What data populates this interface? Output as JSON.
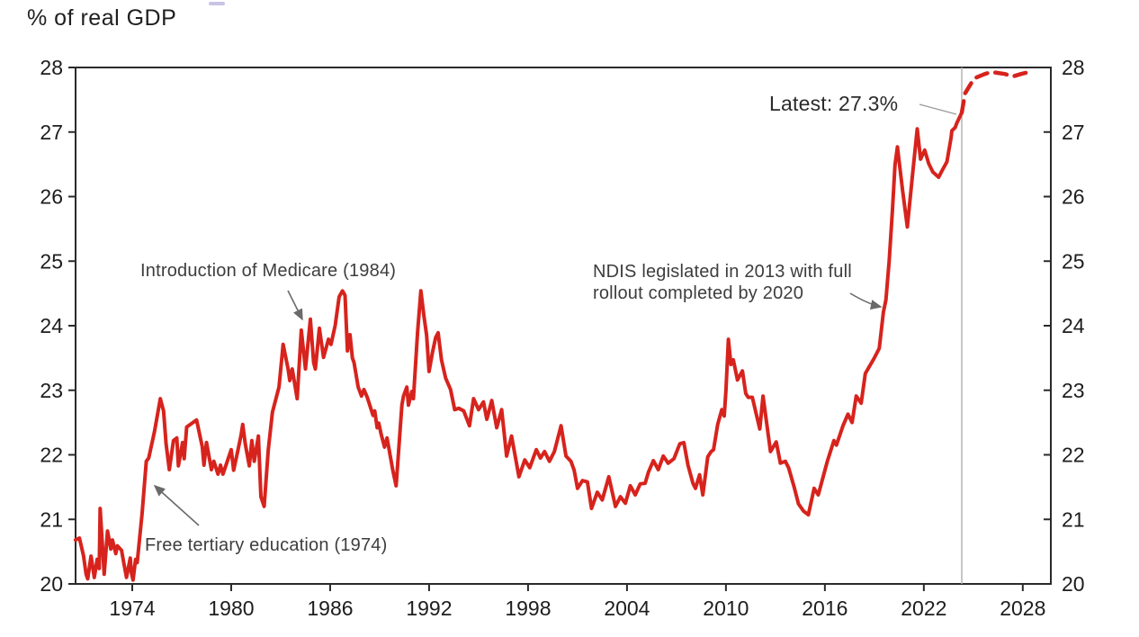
{
  "title": "% of real GDP",
  "chart_data": {
    "type": "line",
    "title": "% of real GDP",
    "ylabel": "% of real GDP",
    "grid": false,
    "legend_position": "none",
    "line_color": "#d7231d",
    "marker_line_color": "#b3b3b3",
    "axis_color": "#2a2a2a",
    "x_ticks": [
      1974,
      1980,
      1986,
      1992,
      1998,
      2004,
      2010,
      2016,
      2022,
      2028
    ],
    "y_ticks": [
      20,
      21,
      22,
      23,
      24,
      25,
      26,
      27,
      28
    ],
    "x_range": [
      1970.5,
      2029.6
    ],
    "y_range": [
      20,
      28
    ],
    "vertical_marker_x": 2024.3,
    "series": [
      {
        "name": "Actual",
        "style": "solid",
        "points": [
          [
            1970.56,
            20.68
          ],
          [
            1970.8,
            20.71
          ],
          [
            1971.05,
            20.43
          ],
          [
            1971.2,
            20.15
          ],
          [
            1971.3,
            20.08
          ],
          [
            1971.5,
            20.43
          ],
          [
            1971.7,
            20.1
          ],
          [
            1971.87,
            20.38
          ],
          [
            1972.0,
            20.24
          ],
          [
            1972.05,
            21.17
          ],
          [
            1972.25,
            20.36
          ],
          [
            1972.3,
            20.15
          ],
          [
            1972.5,
            20.82
          ],
          [
            1972.7,
            20.54
          ],
          [
            1972.8,
            20.68
          ],
          [
            1973.0,
            20.47
          ],
          [
            1973.1,
            20.59
          ],
          [
            1973.35,
            20.52
          ],
          [
            1973.5,
            20.31
          ],
          [
            1973.65,
            20.1
          ],
          [
            1973.88,
            20.4
          ],
          [
            1973.95,
            20.17
          ],
          [
            1974.05,
            20.06
          ],
          [
            1974.2,
            20.38
          ],
          [
            1974.3,
            20.33
          ],
          [
            1974.6,
            21.1
          ],
          [
            1974.85,
            21.9
          ],
          [
            1975.0,
            21.95
          ],
          [
            1975.35,
            22.36
          ],
          [
            1975.7,
            22.87
          ],
          [
            1975.9,
            22.68
          ],
          [
            1976.05,
            22.17
          ],
          [
            1976.25,
            21.77
          ],
          [
            1976.5,
            22.22
          ],
          [
            1976.7,
            22.26
          ],
          [
            1976.8,
            21.83
          ],
          [
            1977.05,
            22.19
          ],
          [
            1977.15,
            21.94
          ],
          [
            1977.3,
            22.43
          ],
          [
            1977.9,
            22.54
          ],
          [
            1978.25,
            22.12
          ],
          [
            1978.35,
            21.84
          ],
          [
            1978.5,
            22.19
          ],
          [
            1978.8,
            21.77
          ],
          [
            1978.95,
            21.9
          ],
          [
            1979.2,
            21.7
          ],
          [
            1979.35,
            21.84
          ],
          [
            1979.5,
            21.7
          ],
          [
            1980.0,
            22.08
          ],
          [
            1980.15,
            21.76
          ],
          [
            1980.45,
            22.12
          ],
          [
            1980.6,
            22.31
          ],
          [
            1980.7,
            22.47
          ],
          [
            1980.85,
            22.17
          ],
          [
            1981.1,
            21.83
          ],
          [
            1981.25,
            22.22
          ],
          [
            1981.4,
            21.9
          ],
          [
            1981.65,
            22.29
          ],
          [
            1981.8,
            21.35
          ],
          [
            1982.0,
            21.2
          ],
          [
            1982.25,
            22.08
          ],
          [
            1982.5,
            22.66
          ],
          [
            1982.9,
            23.05
          ],
          [
            1983.15,
            23.71
          ],
          [
            1983.45,
            23.33
          ],
          [
            1983.55,
            23.15
          ],
          [
            1983.7,
            23.33
          ],
          [
            1984.0,
            22.87
          ],
          [
            1984.25,
            23.93
          ],
          [
            1984.5,
            23.33
          ],
          [
            1984.8,
            24.1
          ],
          [
            1985.0,
            23.43
          ],
          [
            1985.1,
            23.33
          ],
          [
            1985.35,
            23.96
          ],
          [
            1985.6,
            23.51
          ],
          [
            1985.9,
            23.79
          ],
          [
            1986.05,
            23.71
          ],
          [
            1986.3,
            24.0
          ],
          [
            1986.55,
            24.45
          ],
          [
            1986.75,
            24.54
          ],
          [
            1986.9,
            24.47
          ],
          [
            1987.05,
            23.61
          ],
          [
            1987.2,
            23.86
          ],
          [
            1987.35,
            23.5
          ],
          [
            1987.45,
            23.43
          ],
          [
            1987.7,
            23.05
          ],
          [
            1987.9,
            22.91
          ],
          [
            1988.05,
            23.01
          ],
          [
            1988.25,
            22.89
          ],
          [
            1988.45,
            22.73
          ],
          [
            1988.6,
            22.61
          ],
          [
            1988.7,
            22.68
          ],
          [
            1988.85,
            22.42
          ],
          [
            1988.95,
            22.49
          ],
          [
            1989.1,
            22.31
          ],
          [
            1989.3,
            22.12
          ],
          [
            1989.45,
            22.26
          ],
          [
            1989.6,
            22.05
          ],
          [
            1989.8,
            21.76
          ],
          [
            1990.0,
            21.52
          ],
          [
            1990.2,
            22.22
          ],
          [
            1990.35,
            22.77
          ],
          [
            1990.45,
            22.91
          ],
          [
            1990.65,
            23.05
          ],
          [
            1990.75,
            22.77
          ],
          [
            1990.95,
            22.98
          ],
          [
            1991.05,
            22.87
          ],
          [
            1991.3,
            23.89
          ],
          [
            1991.5,
            24.54
          ],
          [
            1991.7,
            24.13
          ],
          [
            1991.85,
            23.85
          ],
          [
            1992.0,
            23.29
          ],
          [
            1992.2,
            23.58
          ],
          [
            1992.4,
            23.82
          ],
          [
            1992.55,
            23.89
          ],
          [
            1992.75,
            23.47
          ],
          [
            1993.0,
            23.19
          ],
          [
            1993.3,
            23.01
          ],
          [
            1993.55,
            22.7
          ],
          [
            1993.8,
            22.72
          ],
          [
            1994.1,
            22.68
          ],
          [
            1994.45,
            22.45
          ],
          [
            1994.7,
            22.87
          ],
          [
            1995.0,
            22.7
          ],
          [
            1995.3,
            22.82
          ],
          [
            1995.5,
            22.55
          ],
          [
            1995.8,
            22.84
          ],
          [
            1996.1,
            22.42
          ],
          [
            1996.4,
            22.7
          ],
          [
            1996.7,
            21.98
          ],
          [
            1997.0,
            22.29
          ],
          [
            1997.45,
            21.66
          ],
          [
            1997.8,
            21.92
          ],
          [
            1998.1,
            21.8
          ],
          [
            1998.5,
            22.08
          ],
          [
            1998.75,
            21.95
          ],
          [
            1999.0,
            22.05
          ],
          [
            1999.3,
            21.9
          ],
          [
            1999.6,
            22.05
          ],
          [
            2000.0,
            22.45
          ],
          [
            2000.3,
            21.98
          ],
          [
            2000.6,
            21.9
          ],
          [
            2000.8,
            21.76
          ],
          [
            2001.0,
            21.48
          ],
          [
            2001.3,
            21.6
          ],
          [
            2001.6,
            21.58
          ],
          [
            2001.85,
            21.17
          ],
          [
            2002.2,
            21.42
          ],
          [
            2002.5,
            21.3
          ],
          [
            2002.9,
            21.66
          ],
          [
            2003.3,
            21.2
          ],
          [
            2003.6,
            21.35
          ],
          [
            2003.9,
            21.25
          ],
          [
            2004.2,
            21.52
          ],
          [
            2004.5,
            21.38
          ],
          [
            2004.8,
            21.55
          ],
          [
            2005.1,
            21.56
          ],
          [
            2005.3,
            21.73
          ],
          [
            2005.6,
            21.91
          ],
          [
            2005.9,
            21.77
          ],
          [
            2006.2,
            21.98
          ],
          [
            2006.5,
            21.87
          ],
          [
            2006.85,
            21.94
          ],
          [
            2007.2,
            22.17
          ],
          [
            2007.45,
            22.19
          ],
          [
            2007.7,
            21.84
          ],
          [
            2008.0,
            21.56
          ],
          [
            2008.15,
            21.48
          ],
          [
            2008.4,
            21.69
          ],
          [
            2008.6,
            21.38
          ],
          [
            2008.9,
            21.97
          ],
          [
            2009.1,
            22.05
          ],
          [
            2009.25,
            22.08
          ],
          [
            2009.5,
            22.47
          ],
          [
            2009.75,
            22.7
          ],
          [
            2009.9,
            22.6
          ],
          [
            2010.0,
            23.0
          ],
          [
            2010.15,
            23.79
          ],
          [
            2010.3,
            23.4
          ],
          [
            2010.45,
            23.47
          ],
          [
            2010.7,
            23.16
          ],
          [
            2011.0,
            23.3
          ],
          [
            2011.2,
            22.95
          ],
          [
            2011.35,
            22.89
          ],
          [
            2011.6,
            22.89
          ],
          [
            2012.05,
            22.4
          ],
          [
            2012.25,
            22.91
          ],
          [
            2012.7,
            22.05
          ],
          [
            2013.05,
            22.2
          ],
          [
            2013.3,
            21.87
          ],
          [
            2013.6,
            21.9
          ],
          [
            2013.8,
            21.8
          ],
          [
            2014.15,
            21.49
          ],
          [
            2014.4,
            21.24
          ],
          [
            2014.7,
            21.13
          ],
          [
            2015.0,
            21.07
          ],
          [
            2015.35,
            21.48
          ],
          [
            2015.6,
            21.38
          ],
          [
            2016.15,
            21.9
          ],
          [
            2016.55,
            22.22
          ],
          [
            2016.7,
            22.15
          ],
          [
            2017.1,
            22.45
          ],
          [
            2017.4,
            22.63
          ],
          [
            2017.65,
            22.5
          ],
          [
            2017.9,
            22.91
          ],
          [
            2018.2,
            22.8
          ],
          [
            2018.45,
            23.26
          ],
          [
            2019.0,
            23.5
          ],
          [
            2019.3,
            23.65
          ],
          [
            2019.55,
            24.21
          ],
          [
            2019.7,
            24.4
          ],
          [
            2019.9,
            25.0
          ],
          [
            2020.1,
            25.8
          ],
          [
            2020.25,
            26.49
          ],
          [
            2020.4,
            26.77
          ],
          [
            2020.7,
            26.12
          ],
          [
            2021.0,
            25.53
          ],
          [
            2021.3,
            26.3
          ],
          [
            2021.6,
            27.05
          ],
          [
            2021.8,
            26.58
          ],
          [
            2022.05,
            26.72
          ],
          [
            2022.3,
            26.51
          ],
          [
            2022.55,
            26.38
          ],
          [
            2022.9,
            26.3
          ],
          [
            2023.1,
            26.4
          ],
          [
            2023.4,
            26.54
          ],
          [
            2023.65,
            26.91
          ],
          [
            2023.7,
            27.02
          ],
          [
            2023.9,
            27.07
          ],
          [
            2024.0,
            27.14
          ],
          [
            2024.3,
            27.3
          ]
        ]
      },
      {
        "name": "Forecast",
        "style": "dashed",
        "points": [
          [
            2024.3,
            27.3
          ],
          [
            2024.5,
            27.6
          ],
          [
            2025.05,
            27.83
          ],
          [
            2025.7,
            27.9
          ],
          [
            2026.1,
            27.93
          ],
          [
            2026.9,
            27.9
          ],
          [
            2027.4,
            27.86
          ],
          [
            2027.9,
            27.9
          ],
          [
            2028.4,
            27.93
          ]
        ]
      }
    ],
    "annotations": [
      {
        "id": "medicare",
        "text": "Introduction of Medicare (1984)"
      },
      {
        "id": "free-tertiary",
        "text": "Free tertiary education (1974)"
      },
      {
        "id": "ndis",
        "text": "NDIS legislated in 2013 with full\nrollout completed by 2020"
      },
      {
        "id": "latest",
        "text": "Latest: 27.3%"
      }
    ]
  }
}
